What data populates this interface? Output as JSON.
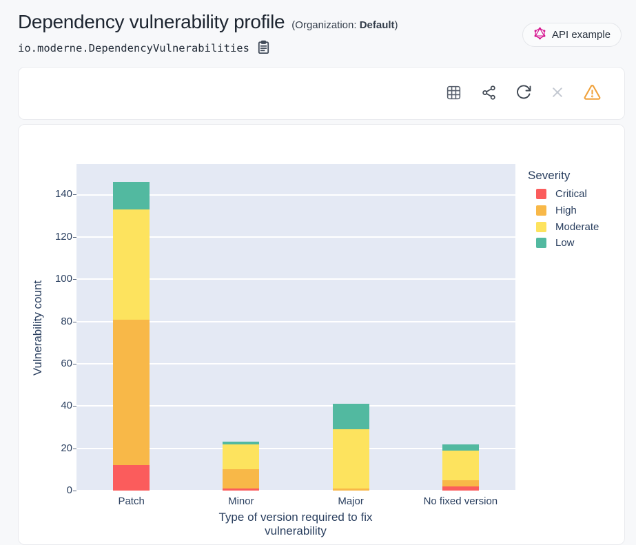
{
  "header": {
    "title": "Dependency vulnerability profile",
    "org_prefix": "(Organization: ",
    "org_name": "Default",
    "org_suffix": ")",
    "recipe_id": "io.moderne.DependencyVulnerabilities",
    "api_button_label": "API example"
  },
  "icons": {
    "graphql_icon_color": "#D6128F",
    "copy_icon": "clipboard",
    "toolbar": [
      "data-grid",
      "share",
      "refresh",
      "close",
      "warning"
    ],
    "toolbar_icon_color": "#3F4752",
    "disabled_icon_color": "#C2C7D0",
    "warning_icon_color": "#F0A23C"
  },
  "chart_data": {
    "type": "bar",
    "stacked": true,
    "title": "",
    "categories": [
      "Patch",
      "Minor",
      "Major",
      "No fixed version"
    ],
    "series": [
      {
        "name": "Critical",
        "color": "#FB5C5C",
        "values": [
          12,
          1,
          0,
          2
        ]
      },
      {
        "name": "High",
        "color": "#F8B848",
        "values": [
          69,
          9,
          1,
          3
        ]
      },
      {
        "name": "Moderate",
        "color": "#FDE35E",
        "values": [
          52,
          12,
          28,
          14
        ]
      },
      {
        "name": "Low",
        "color": "#52B9A0",
        "values": [
          13,
          1,
          12,
          3
        ]
      }
    ],
    "xlabel": "Type of version required to fix vulnerability",
    "ylabel": "Vulnerability count",
    "legend_title": "Severity",
    "legend_position": "right",
    "yticks": [
      0,
      20,
      40,
      60,
      80,
      100,
      120,
      140
    ],
    "ylim": [
      0,
      154.5
    ],
    "grid": "on",
    "plot_bg": "#E4E9F4",
    "text_color": "#2A3F5F"
  }
}
